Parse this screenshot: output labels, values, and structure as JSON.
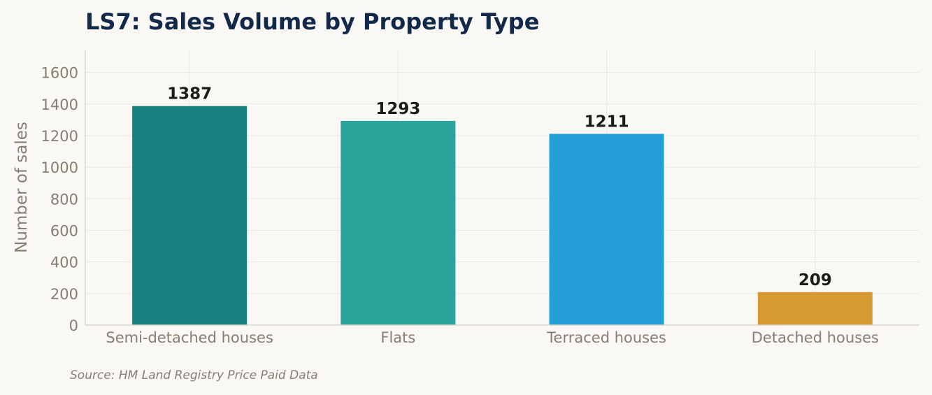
{
  "chart_data": {
    "type": "bar",
    "title": "LS7: Sales Volume by Property Type",
    "xlabel": "",
    "ylabel": "Number of sales",
    "ylim": [
      0,
      1740
    ],
    "yticks": [
      0,
      200,
      400,
      600,
      800,
      1000,
      1200,
      1400,
      1600
    ],
    "categories": [
      "Semi-detached houses",
      "Flats",
      "Terraced houses",
      "Detached houses"
    ],
    "values": [
      1387,
      1293,
      1211,
      209
    ],
    "colors": [
      "#178280",
      "#2aa39b",
      "#249fd9",
      "#d69a32"
    ],
    "grid": true,
    "source": "Source: HM Land Registry Price Paid Data"
  }
}
